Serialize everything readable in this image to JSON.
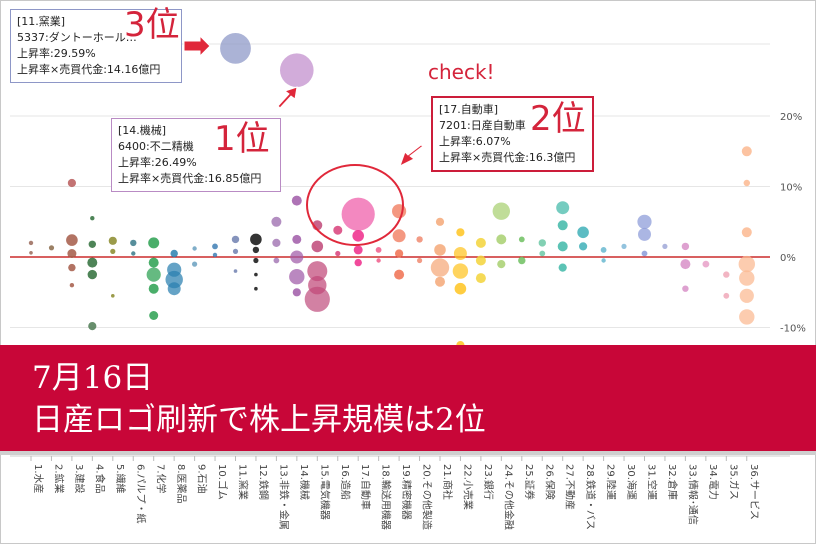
{
  "annotations": {
    "rank3_tooltip": {
      "lines": [
        "[11.窯業]",
        "5337:ダントーホール…",
        "上昇率:29.59%",
        "上昇率×売買代金:14.16億円"
      ]
    },
    "rank1_tooltip": {
      "lines": [
        "[14.機械]",
        "6400:不二精機",
        "上昇率:26.49%",
        "上昇率×売買代金:16.85億円"
      ]
    },
    "rank2_tooltip": {
      "lines": [
        "[17.自動車]",
        "7201:日産自動車",
        "上昇率:6.07%",
        "上昇率×売買代金:16.3億円"
      ]
    },
    "rank3_label": "3位",
    "rank1_label": "1位",
    "rank2_label": "2位",
    "check_label": "check!"
  },
  "banner": {
    "date": "7月16日",
    "headline": "日産ロゴ刷新で株上昇規模は2位"
  },
  "colors": {
    "banner_bg": "#c80638",
    "annotation_red": "#d4243b",
    "zero_line": "#c00000"
  },
  "chart_data": {
    "type": "scatter",
    "title": "",
    "xlabel": "",
    "ylabel": "",
    "categories": [
      "1.水産",
      "2.鉱業",
      "3.建設",
      "4.食品",
      "5.繊維",
      "6.パルプ・紙",
      "7.化学",
      "8.医薬品",
      "9.石油",
      "10.ゴム",
      "11.窯業",
      "12.鉄鋼",
      "13.非鉄・金属",
      "14.機械",
      "15.電気機器",
      "16.造船",
      "17.自動車",
      "18.輸送用機器",
      "19.精密機器",
      "20.その他製造",
      "21.商社",
      "22.小売業",
      "23.銀行",
      "24.その他金融",
      "25.証券",
      "26.保険",
      "27.不動産",
      "28.鉄道・バス",
      "29.陸運",
      "30.海運",
      "31.空運",
      "32.倉庫",
      "33.情報･通信",
      "34.電力",
      "35.ガス",
      "36.サービス"
    ],
    "y_ticks": [
      "20%",
      "10%",
      "0%",
      "-10%"
    ],
    "y_tick_values": [
      20,
      10,
      0,
      -10
    ],
    "ylim": [
      -13,
      34
    ],
    "grid": true,
    "legend": "none",
    "series": [
      {
        "points": [
          {
            "cat": 11,
            "y": 29.59,
            "v": 14.16,
            "color": "#8a95c6"
          },
          {
            "cat": 14,
            "y": 26.49,
            "v": 16.85,
            "color": "#c08ccc"
          },
          {
            "cat": 17,
            "y": 6.07,
            "v": 16.3,
            "color": "#ee5aa8"
          },
          {
            "cat": 3,
            "y": 10.5,
            "v": 1.0,
            "color": "#b85a5a"
          },
          {
            "cat": 1,
            "y": 2.0,
            "v": 0.3,
            "color": "#9a6a5a"
          },
          {
            "cat": 1,
            "y": 0.6,
            "v": 0.2,
            "color": "#9a6a5a"
          },
          {
            "cat": 2,
            "y": 1.3,
            "v": 0.4,
            "color": "#8a6a4a"
          },
          {
            "cat": 3,
            "y": 2.4,
            "v": 2.0,
            "color": "#a45a48"
          },
          {
            "cat": 3,
            "y": 0.5,
            "v": 1.2,
            "color": "#a45a48"
          },
          {
            "cat": 3,
            "y": -1.5,
            "v": 0.8,
            "color": "#a45a48"
          },
          {
            "cat": 3,
            "y": -4.0,
            "v": 0.3,
            "color": "#a45a48"
          },
          {
            "cat": 4,
            "y": 5.5,
            "v": 0.3,
            "color": "#2f6e3a"
          },
          {
            "cat": 4,
            "y": 1.8,
            "v": 0.8,
            "color": "#2f6e3a"
          },
          {
            "cat": 4,
            "y": -0.8,
            "v": 1.5,
            "color": "#2f6e3a"
          },
          {
            "cat": 4,
            "y": -2.5,
            "v": 1.3,
            "color": "#2f6e3a"
          },
          {
            "cat": 4,
            "y": -9.8,
            "v": 1.0,
            "color": "#4c7a52"
          },
          {
            "cat": 5,
            "y": 2.3,
            "v": 1.0,
            "color": "#8a8a2a"
          },
          {
            "cat": 5,
            "y": 0.8,
            "v": 0.4,
            "color": "#8a8a2a"
          },
          {
            "cat": 5,
            "y": -5.5,
            "v": 0.2,
            "color": "#8a8a2a"
          },
          {
            "cat": 6,
            "y": 2.0,
            "v": 0.6,
            "color": "#3a7a8a"
          },
          {
            "cat": 6,
            "y": 0.5,
            "v": 0.3,
            "color": "#3a7a8a"
          },
          {
            "cat": 7,
            "y": 2.0,
            "v": 1.8,
            "color": "#2aa050"
          },
          {
            "cat": 7,
            "y": -0.8,
            "v": 1.5,
            "color": "#2aa050"
          },
          {
            "cat": 7,
            "y": -2.5,
            "v": 3.0,
            "color": "#2aa050"
          },
          {
            "cat": 7,
            "y": -4.5,
            "v": 1.5,
            "color": "#2aa050"
          },
          {
            "cat": 7,
            "y": -8.3,
            "v": 1.2,
            "color": "#2aa050"
          },
          {
            "cat": 8,
            "y": 0.5,
            "v": 0.8,
            "color": "#2a80b0"
          },
          {
            "cat": 8,
            "y": -1.8,
            "v": 3.0,
            "color": "#2a80b0"
          },
          {
            "cat": 8,
            "y": -3.2,
            "v": 4.5,
            "color": "#2a80b0"
          },
          {
            "cat": 8,
            "y": -4.5,
            "v": 2.5,
            "color": "#2a80b0"
          },
          {
            "cat": 9,
            "y": 1.2,
            "v": 0.3,
            "color": "#6aa0c0"
          },
          {
            "cat": 9,
            "y": -1.0,
            "v": 0.4,
            "color": "#6aa0c0"
          },
          {
            "cat": 10,
            "y": 1.5,
            "v": 0.5,
            "color": "#3f7fb5"
          },
          {
            "cat": 10,
            "y": 0.3,
            "v": 0.3,
            "color": "#3f7fb5"
          },
          {
            "cat": 11,
            "y": 2.5,
            "v": 0.8,
            "color": "#7080b0"
          },
          {
            "cat": 11,
            "y": 0.8,
            "v": 0.4,
            "color": "#7080b0"
          },
          {
            "cat": 11,
            "y": -2.0,
            "v": 0.2,
            "color": "#7080b0"
          },
          {
            "cat": 12,
            "y": 2.5,
            "v": 2.0,
            "color": "#111111"
          },
          {
            "cat": 12,
            "y": 1.0,
            "v": 0.6,
            "color": "#111111"
          },
          {
            "cat": 12,
            "y": -0.5,
            "v": 0.4,
            "color": "#111111"
          },
          {
            "cat": 12,
            "y": -2.5,
            "v": 0.2,
            "color": "#111111"
          },
          {
            "cat": 12,
            "y": -4.5,
            "v": 0.2,
            "color": "#111111"
          },
          {
            "cat": 13,
            "y": 5.0,
            "v": 1.5,
            "color": "#a67ab6"
          },
          {
            "cat": 13,
            "y": 2.0,
            "v": 1.0,
            "color": "#a67ab6"
          },
          {
            "cat": 13,
            "y": -0.5,
            "v": 0.5,
            "color": "#a67ab6"
          },
          {
            "cat": 14,
            "y": 8.0,
            "v": 1.5,
            "color": "#a05aa8"
          },
          {
            "cat": 14,
            "y": 2.5,
            "v": 1.2,
            "color": "#a05aa8"
          },
          {
            "cat": 14,
            "y": 0.0,
            "v": 2.5,
            "color": "#a05aa8"
          },
          {
            "cat": 14,
            "y": -2.8,
            "v": 3.5,
            "color": "#a05aa8"
          },
          {
            "cat": 14,
            "y": -5.0,
            "v": 1.0,
            "color": "#a05aa8"
          },
          {
            "cat": 15,
            "y": 4.5,
            "v": 1.5,
            "color": "#c04878"
          },
          {
            "cat": 15,
            "y": 1.5,
            "v": 2.0,
            "color": "#c04878"
          },
          {
            "cat": 15,
            "y": -2.0,
            "v": 6.0,
            "color": "#c04878"
          },
          {
            "cat": 15,
            "y": -4.0,
            "v": 5.0,
            "color": "#c04878"
          },
          {
            "cat": 15,
            "y": -6.0,
            "v": 9.5,
            "color": "#c05080"
          },
          {
            "cat": 16,
            "y": 3.8,
            "v": 1.2,
            "color": "#d8407a"
          },
          {
            "cat": 16,
            "y": 0.5,
            "v": 0.4,
            "color": "#d8407a"
          },
          {
            "cat": 17,
            "y": 3.0,
            "v": 2.0,
            "color": "#ee2a8a"
          },
          {
            "cat": 17,
            "y": 1.0,
            "v": 1.2,
            "color": "#ee2a8a"
          },
          {
            "cat": 17,
            "y": -0.8,
            "v": 0.8,
            "color": "#ee2a8a"
          },
          {
            "cat": 18,
            "y": 1.0,
            "v": 0.5,
            "color": "#f05a8a"
          },
          {
            "cat": 18,
            "y": -0.5,
            "v": 0.3,
            "color": "#f05a8a"
          },
          {
            "cat": 19,
            "y": 6.5,
            "v": 3.0,
            "color": "#f07050"
          },
          {
            "cat": 19,
            "y": 3.0,
            "v": 2.5,
            "color": "#f07050"
          },
          {
            "cat": 19,
            "y": 0.5,
            "v": 1.0,
            "color": "#f07050"
          },
          {
            "cat": 19,
            "y": -2.5,
            "v": 1.5,
            "color": "#f07050"
          },
          {
            "cat": 20,
            "y": 2.5,
            "v": 0.6,
            "color": "#f08a70"
          },
          {
            "cat": 20,
            "y": -0.5,
            "v": 0.4,
            "color": "#f08a70"
          },
          {
            "cat": 21,
            "y": 5.0,
            "v": 1.0,
            "color": "#f5a878"
          },
          {
            "cat": 21,
            "y": 1.0,
            "v": 2.0,
            "color": "#f5a878"
          },
          {
            "cat": 21,
            "y": -1.5,
            "v": 5.0,
            "color": "#f5a878"
          },
          {
            "cat": 21,
            "y": -3.5,
            "v": 1.5,
            "color": "#f5a878"
          },
          {
            "cat": 22,
            "y": 3.5,
            "v": 1.0,
            "color": "#ffc420"
          },
          {
            "cat": 22,
            "y": 0.5,
            "v": 2.5,
            "color": "#ffc420"
          },
          {
            "cat": 22,
            "y": -2.0,
            "v": 3.5,
            "color": "#ffc420"
          },
          {
            "cat": 22,
            "y": -4.5,
            "v": 2.0,
            "color": "#ffc420"
          },
          {
            "cat": 22,
            "y": -12.5,
            "v": 1.0,
            "color": "#ffc420"
          },
          {
            "cat": 23,
            "y": 2.0,
            "v": 1.5,
            "color": "#f3d43a"
          },
          {
            "cat": 23,
            "y": -0.5,
            "v": 1.5,
            "color": "#f3d43a"
          },
          {
            "cat": 23,
            "y": -3.0,
            "v": 1.5,
            "color": "#f3d43a"
          },
          {
            "cat": 24,
            "y": 6.5,
            "v": 4.5,
            "color": "#a8d070"
          },
          {
            "cat": 24,
            "y": 2.5,
            "v": 1.5,
            "color": "#a8d070"
          },
          {
            "cat": 24,
            "y": -1.0,
            "v": 1.0,
            "color": "#a8d070"
          },
          {
            "cat": 25,
            "y": 2.5,
            "v": 0.5,
            "color": "#6fbf60"
          },
          {
            "cat": 25,
            "y": -0.5,
            "v": 0.8,
            "color": "#6fbf60"
          },
          {
            "cat": 26,
            "y": 2.0,
            "v": 0.8,
            "color": "#6cc8a6"
          },
          {
            "cat": 26,
            "y": 0.5,
            "v": 0.5,
            "color": "#6cc8a6"
          },
          {
            "cat": 27,
            "y": 7.0,
            "v": 2.5,
            "color": "#40b8a8"
          },
          {
            "cat": 27,
            "y": 4.5,
            "v": 1.5,
            "color": "#40b8a8"
          },
          {
            "cat": 27,
            "y": 1.5,
            "v": 1.5,
            "color": "#40b8a8"
          },
          {
            "cat": 27,
            "y": -1.5,
            "v": 1.0,
            "color": "#40b8a8"
          },
          {
            "cat": 28,
            "y": 3.5,
            "v": 2.0,
            "color": "#40b0b8"
          },
          {
            "cat": 28,
            "y": 1.5,
            "v": 1.0,
            "color": "#40b0b8"
          },
          {
            "cat": 29,
            "y": 1.0,
            "v": 0.5,
            "color": "#68b8d0"
          },
          {
            "cat": 29,
            "y": -0.5,
            "v": 0.3,
            "color": "#68b8d0"
          },
          {
            "cat": 30,
            "y": 1.5,
            "v": 0.4,
            "color": "#80b8d8"
          },
          {
            "cat": 31,
            "y": 5.0,
            "v": 3.0,
            "color": "#8a9ad8"
          },
          {
            "cat": 31,
            "y": 3.2,
            "v": 2.5,
            "color": "#8a9ad8"
          },
          {
            "cat": 31,
            "y": 0.5,
            "v": 0.5,
            "color": "#8a9ad8"
          },
          {
            "cat": 32,
            "y": 1.5,
            "v": 0.4,
            "color": "#a0a8d8"
          },
          {
            "cat": 33,
            "y": 1.5,
            "v": 0.8,
            "color": "#d890c8"
          },
          {
            "cat": 33,
            "y": -1.0,
            "v": 1.5,
            "color": "#d890c8"
          },
          {
            "cat": 33,
            "y": -4.5,
            "v": 0.6,
            "color": "#d890c8"
          },
          {
            "cat": 34,
            "y": -1.0,
            "v": 0.7,
            "color": "#e8a0c8"
          },
          {
            "cat": 35,
            "y": -2.5,
            "v": 0.6,
            "color": "#f0a8b8"
          },
          {
            "cat": 35,
            "y": -5.5,
            "v": 0.5,
            "color": "#f0a8b8"
          },
          {
            "cat": 36,
            "y": 15.0,
            "v": 1.5,
            "color": "#fbb890"
          },
          {
            "cat": 36,
            "y": 10.5,
            "v": 0.6,
            "color": "#fbb890"
          },
          {
            "cat": 36,
            "y": 3.5,
            "v": 1.5,
            "color": "#fbb890"
          },
          {
            "cat": 36,
            "y": -1.0,
            "v": 4.0,
            "color": "#fbb890"
          },
          {
            "cat": 36,
            "y": -3.0,
            "v": 3.5,
            "color": "#fbb890"
          },
          {
            "cat": 36,
            "y": -5.5,
            "v": 3.0,
            "color": "#fbb890"
          },
          {
            "cat": 36,
            "y": -8.5,
            "v": 3.5,
            "color": "#fbb890"
          }
        ]
      }
    ]
  }
}
